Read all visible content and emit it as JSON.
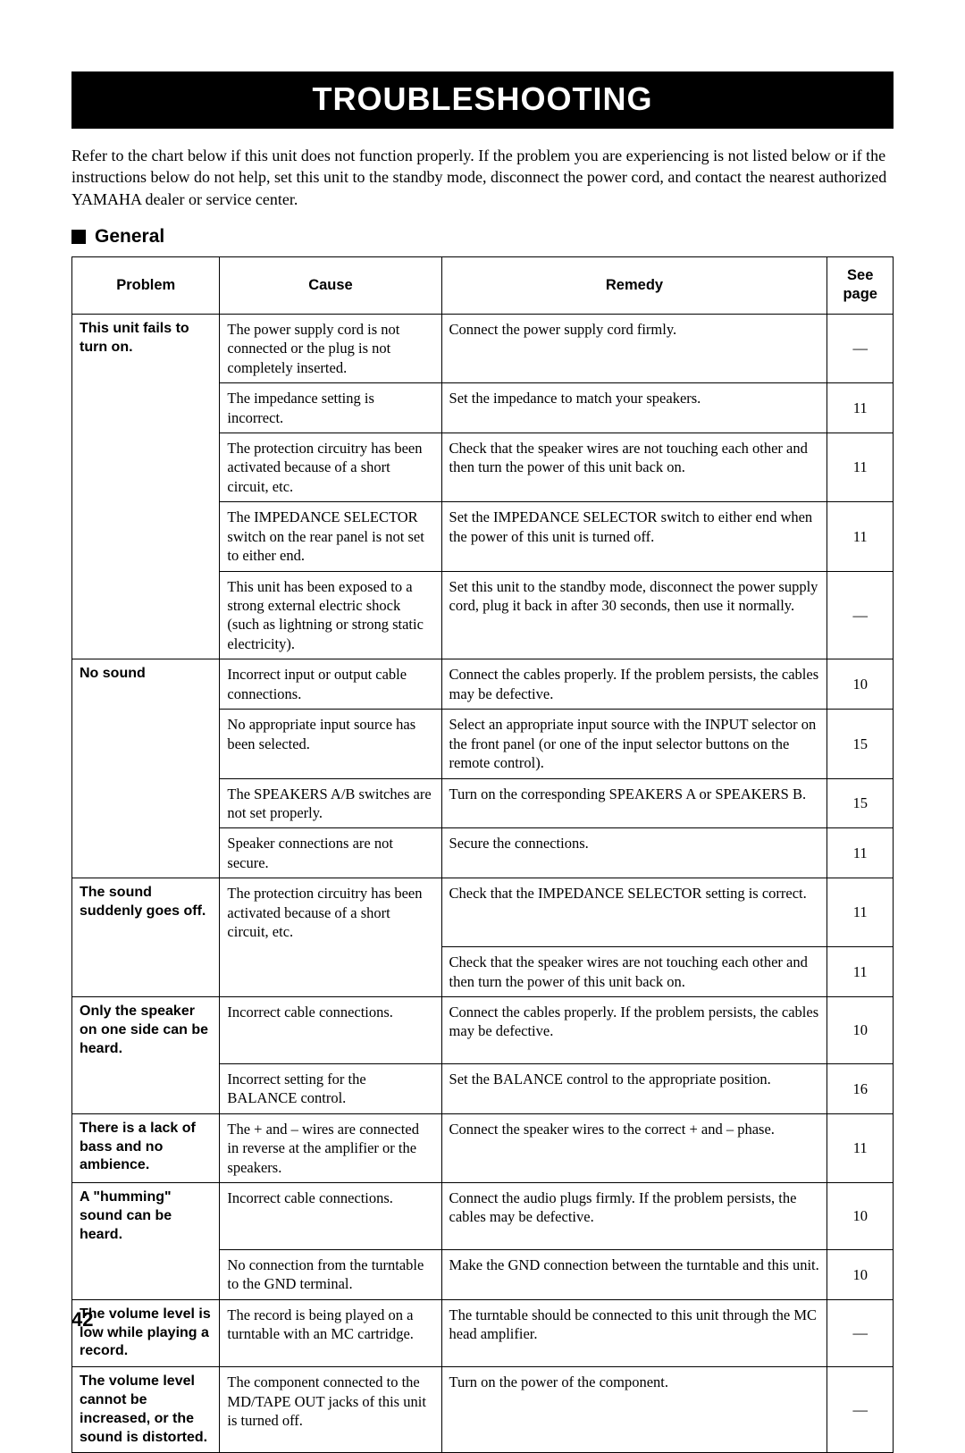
{
  "title": "TROUBLESHOOTING",
  "intro": "Refer to the chart below if this unit does not function properly. If the problem you are experiencing is not listed below or if the instructions below do not help, set this unit to the standby mode, disconnect the power cord, and contact the nearest authorized YAMAHA dealer or service center.",
  "section": "General",
  "headers": {
    "problem": "Problem",
    "cause": "Cause",
    "remedy": "Remedy",
    "page": "See page"
  },
  "page_number": "42",
  "column_widths_pct": {
    "problem": 18,
    "cause": 27,
    "remedy": 47,
    "page": 8
  },
  "rows": [
    {
      "problem": "This unit fails to turn on.",
      "prowspan": 5,
      "cause": "The power supply cord is not connected or the plug is not completely inserted.",
      "remedy": "Connect the power supply cord firmly.",
      "page": "—"
    },
    {
      "cause": "The impedance setting is incorrect.",
      "remedy": "Set the impedance to match your speakers.",
      "page": "11"
    },
    {
      "cause": "The protection circuitry has been activated because of a short circuit, etc.",
      "remedy": "Check that the speaker wires are not touching each other and then turn the power of this unit back on.",
      "page": "11"
    },
    {
      "cause": "The IMPEDANCE SELECTOR switch on the rear panel is not set to either end.",
      "remedy": "Set the IMPEDANCE SELECTOR switch to either end when the power of this unit is turned off.",
      "page": "11"
    },
    {
      "cause": "This unit has been exposed to a strong external electric shock (such as lightning or strong static electricity).",
      "remedy": "Set this unit to the standby mode, disconnect the power supply cord, plug it back in after 30 seconds, then use it normally.",
      "page": "—"
    },
    {
      "problem": "No sound",
      "prowspan": 4,
      "cause": "Incorrect input or output cable connections.",
      "remedy": "Connect the cables properly. If the problem persists, the cables may be defective.",
      "page": "10"
    },
    {
      "cause": "No appropriate input source has been selected.",
      "remedy": "Select an appropriate input source with the INPUT selector on the front panel (or one of the input selector buttons on the remote control).",
      "page": "15"
    },
    {
      "cause": "The SPEAKERS A/B switches are not set properly.",
      "remedy": "Turn on the corresponding SPEAKERS A or SPEAKERS B.",
      "page": "15"
    },
    {
      "cause": "Speaker connections are not secure.",
      "remedy": "Secure the connections.",
      "page": "11"
    },
    {
      "problem": "The sound suddenly goes off.",
      "prowspan": 2,
      "cause": "The protection circuitry has been activated because of a short circuit, etc.",
      "crowspan": 2,
      "remedy": "Check that the IMPEDANCE SELECTOR setting is correct.",
      "page": "11"
    },
    {
      "remedy": "Check that the speaker wires are not touching each other and then turn the power of this unit back on.",
      "page": "11"
    },
    {
      "problem": "Only the speaker on one side can be heard.",
      "prowspan": 2,
      "cause": "Incorrect cable connections.",
      "remedy": "Connect the cables properly. If the problem persists, the cables may be defective.",
      "page": "10"
    },
    {
      "cause": "Incorrect setting for the BALANCE control.",
      "remedy": "Set the BALANCE control to the appropriate position.",
      "page": "16"
    },
    {
      "problem": "There is a lack of bass and no ambience.",
      "prowspan": 1,
      "cause": "The + and – wires are connected in reverse at the amplifier or the speakers.",
      "remedy": "Connect the speaker wires to the correct + and – phase.",
      "page": "11"
    },
    {
      "problem": "A \"humming\" sound can be heard.",
      "prowspan": 2,
      "cause": "Incorrect cable connections.",
      "remedy": "Connect the audio plugs firmly. If the problem persists, the cables may be defective.",
      "page": "10"
    },
    {
      "cause": "No connection from the turntable to the GND terminal.",
      "remedy": "Make the GND connection between the turntable and this unit.",
      "page": "10"
    },
    {
      "problem": "The volume level is low while playing a record.",
      "prowspan": 1,
      "cause": "The record is being played on a turntable with an MC cartridge.",
      "remedy": "The turntable should be connected to this unit through the MC head amplifier.",
      "page": "—"
    },
    {
      "problem": "The volume level cannot be increased, or the sound is distorted.",
      "prowspan": 1,
      "cause": "The component connected to the MD/TAPE OUT jacks of this unit is turned off.",
      "remedy": "Turn on the power of the component.",
      "page": "—"
    }
  ]
}
